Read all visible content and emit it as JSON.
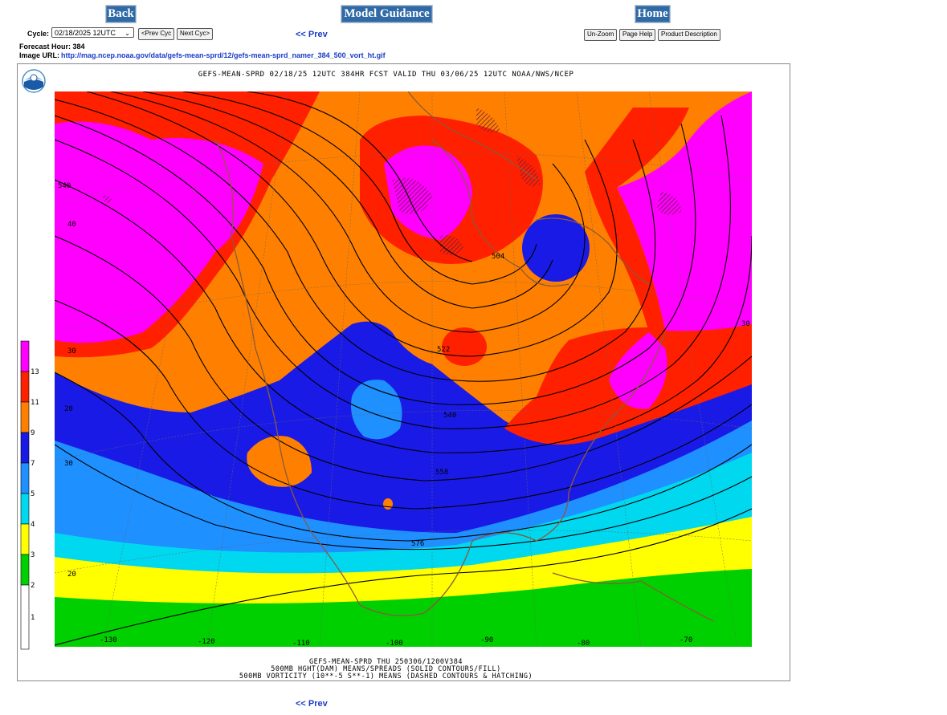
{
  "nav": {
    "back_label": "Back",
    "guidance_label": "Model Guidance",
    "home_label": "Home"
  },
  "cycle": {
    "label": "Cycle:",
    "selected": "02/18/2025 12UTC",
    "prev_btn": "<Prev Cyc",
    "next_btn": "Next Cyc>"
  },
  "prev_link_top": "<< Prev",
  "prev_link_bottom": "<< Prev",
  "toolbar": {
    "unzoom": "Un-Zoom",
    "page_help": "Page Help",
    "product_desc": "Product Description"
  },
  "forecast_hour": "Forecast Hour: 384",
  "image_url_label": "Image URL:",
  "image_url": "http://mag.ncep.noaa.gov/data/gefs-mean-sprd/12/gefs-mean-sprd_namer_384_500_vort_ht.gif",
  "map": {
    "title": "GEFS-MEAN-SPRD 02/18/25 12UTC 384HR FCST VALID THU 03/06/25 12UTC NOAA/NWS/NCEP",
    "footer_1": "GEFS-MEAN-SPRD THU 250306/1200V384",
    "footer_2": "500MB HGHT(DAM) MEANS/SPREADS (SOLID CONTOURS/FILL)",
    "footer_3": "500MB VORTICITY (10**-5 S**-1) MEANS (DASHED CONTOURS & HATCHING)",
    "legend_labels": [
      "13",
      "11",
      "9",
      "7",
      "5",
      "4",
      "3",
      "2",
      "1"
    ],
    "legend_colors": [
      "#ff00ff",
      "#ff2000",
      "#ff8000",
      "#1a1ae6",
      "#1e90ff",
      "#00d8f0",
      "#ffff00",
      "#00d000",
      "#ffffff"
    ],
    "contour_labels": [
      "540",
      "504",
      "522",
      "540",
      "558",
      "576"
    ],
    "lat_labels": [
      "30",
      "40",
      "30",
      "30",
      "20",
      "20"
    ],
    "lon_labels": [
      "-130",
      "-120",
      "-110",
      "-100",
      "-90",
      "-80",
      "-70"
    ]
  }
}
